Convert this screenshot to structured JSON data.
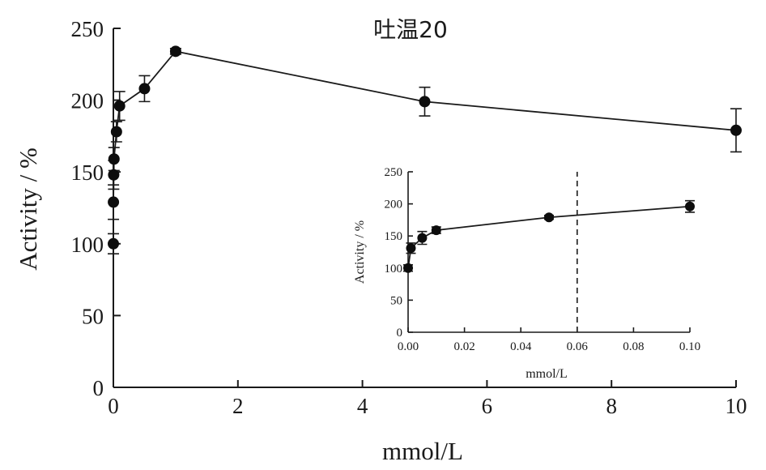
{
  "chart_data": [
    {
      "type": "scatter",
      "role": "main",
      "title": "吐温20",
      "xlabel": "mmol/L",
      "ylabel": "Activity / %",
      "xlim": [
        0,
        10
      ],
      "ylim": [
        0,
        250
      ],
      "x_ticks": [
        0,
        2,
        4,
        6,
        8,
        10
      ],
      "y_ticks": [
        0,
        50,
        100,
        150,
        200,
        250
      ],
      "series": [
        {
          "connected": true,
          "points": [
            {
              "x": 0,
              "y": 100,
              "err": 7
            },
            {
              "x": 0.001,
              "y": 129,
              "err": 12
            },
            {
              "x": 0.005,
              "y": 148,
              "err": 10
            },
            {
              "x": 0.01,
              "y": 159,
              "err": 8
            },
            {
              "x": 0.05,
              "y": 178,
              "err": 7
            },
            {
              "x": 0.1,
              "y": 196,
              "err": 10
            },
            {
              "x": 0.5,
              "y": 208,
              "err": 9
            },
            {
              "x": 1,
              "y": 234,
              "err": 2
            },
            {
              "x": 5,
              "y": 199,
              "err": 10
            },
            {
              "x": 10,
              "y": 179,
              "err": 15
            }
          ]
        }
      ]
    },
    {
      "type": "scatter",
      "role": "inset",
      "xlabel": "mmol/L",
      "ylabel": "Activity / %",
      "xlim": [
        0,
        0.1
      ],
      "ylim": [
        0,
        250
      ],
      "x_ticks": [
        "0.00",
        "0.02",
        "0.04",
        "0.06",
        "0.08",
        "0.10"
      ],
      "y_ticks": [
        0,
        50,
        100,
        150,
        200,
        250
      ],
      "reference_line": {
        "x": 0.06,
        "style": "dashed"
      },
      "series": [
        {
          "connected": true,
          "points": [
            {
              "x": 0,
              "y": 100,
              "err": 5
            },
            {
              "x": 0.001,
              "y": 131,
              "err": 8
            },
            {
              "x": 0.005,
              "y": 147,
              "err": 10
            },
            {
              "x": 0.01,
              "y": 159,
              "err": 5
            },
            {
              "x": 0.05,
              "y": 179,
              "err": 3
            },
            {
              "x": 0.1,
              "y": 196,
              "err": 9
            }
          ]
        }
      ]
    }
  ]
}
